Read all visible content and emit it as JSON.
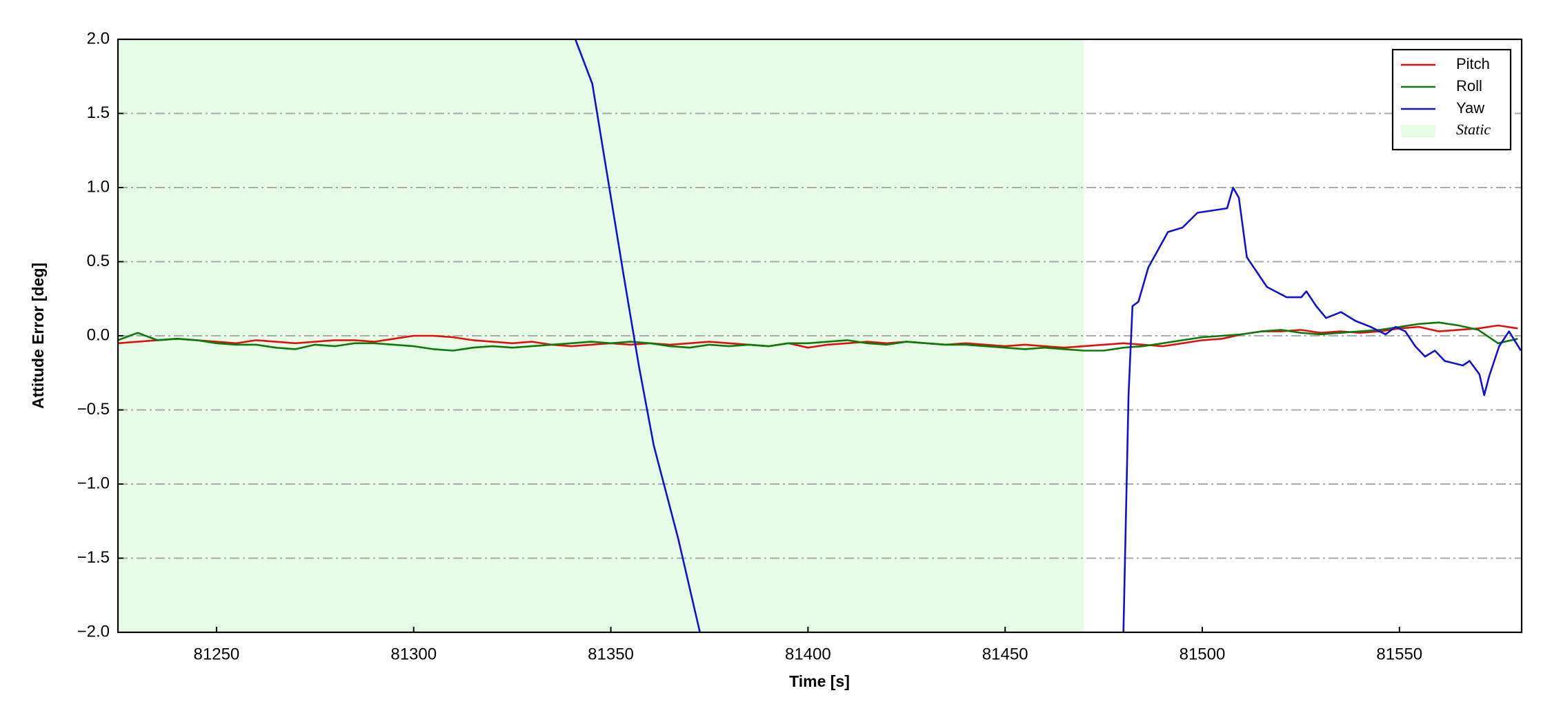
{
  "chart_data": {
    "type": "line",
    "xlabel": "Time [s]",
    "ylabel": "Attitude Error [deg]",
    "xlim": [
      81225,
      81581
    ],
    "ylim": [
      -2.0,
      2.0
    ],
    "xticks": [
      81250,
      81300,
      81350,
      81400,
      81450,
      81500,
      81550
    ],
    "yticks": [
      {
        "value": -2.0,
        "label": "−2.0"
      },
      {
        "value": -1.5,
        "label": "−1.5"
      },
      {
        "value": -1.0,
        "label": "−1.0"
      },
      {
        "value": -0.5,
        "label": "−0.5"
      },
      {
        "value": 0.0,
        "label": "0.0"
      },
      {
        "value": 0.5,
        "label": "0.5"
      },
      {
        "value": 1.0,
        "label": "1.0"
      },
      {
        "value": 1.5,
        "label": "1.5"
      },
      {
        "value": 2.0,
        "label": "2.0"
      }
    ],
    "grid": true,
    "legend": "upper right",
    "static": {
      "name": "Static",
      "range": [
        81225,
        81470
      ],
      "color": "#e6fce6"
    },
    "x": [
      81225,
      81230,
      81235,
      81240,
      81245,
      81250,
      81255,
      81260,
      81265,
      81270,
      81275,
      81280,
      81285,
      81290,
      81295,
      81300,
      81305,
      81310,
      81315,
      81320,
      81325,
      81330,
      81335,
      81340,
      81345,
      81350,
      81355,
      81360,
      81365,
      81370,
      81375,
      81380,
      81385,
      81390,
      81395,
      81400,
      81405,
      81410,
      81415,
      81420,
      81425,
      81430,
      81435,
      81440,
      81445,
      81450,
      81455,
      81460,
      81465,
      81470,
      81475,
      81480,
      81485,
      81490,
      81495,
      81500,
      81505,
      81510,
      81515,
      81520,
      81525,
      81530,
      81535,
      81540,
      81545,
      81550,
      81555,
      81560,
      81565,
      81570,
      81575,
      81580
    ],
    "series": [
      {
        "name": "Pitch",
        "color": "#e01010",
        "values": [
          -0.05,
          -0.04,
          -0.03,
          -0.02,
          -0.03,
          -0.04,
          -0.05,
          -0.03,
          -0.04,
          -0.05,
          -0.04,
          -0.03,
          -0.03,
          -0.04,
          -0.02,
          0.0,
          0.0,
          -0.01,
          -0.03,
          -0.04,
          -0.05,
          -0.04,
          -0.06,
          -0.07,
          -0.06,
          -0.05,
          -0.06,
          -0.05,
          -0.06,
          -0.05,
          -0.04,
          -0.05,
          -0.06,
          -0.07,
          -0.05,
          -0.08,
          -0.06,
          -0.05,
          -0.04,
          -0.05,
          -0.04,
          -0.05,
          -0.06,
          -0.05,
          -0.06,
          -0.07,
          -0.06,
          -0.07,
          -0.08,
          -0.07,
          -0.06,
          -0.05,
          -0.06,
          -0.07,
          -0.05,
          -0.03,
          -0.02,
          0.01,
          0.03,
          0.03,
          0.04,
          0.02,
          0.03,
          0.02,
          0.03,
          0.05,
          0.06,
          0.03,
          0.04,
          0.05,
          0.07,
          0.05
        ]
      },
      {
        "name": "Roll",
        "color": "#0a7a0a",
        "values": [
          -0.03,
          0.02,
          -0.03,
          -0.02,
          -0.03,
          -0.05,
          -0.06,
          -0.06,
          -0.08,
          -0.09,
          -0.06,
          -0.07,
          -0.05,
          -0.05,
          -0.06,
          -0.07,
          -0.09,
          -0.1,
          -0.08,
          -0.07,
          -0.08,
          -0.07,
          -0.06,
          -0.05,
          -0.04,
          -0.05,
          -0.04,
          -0.05,
          -0.07,
          -0.08,
          -0.06,
          -0.07,
          -0.06,
          -0.07,
          -0.05,
          -0.05,
          -0.04,
          -0.03,
          -0.05,
          -0.06,
          -0.04,
          -0.05,
          -0.06,
          -0.06,
          -0.07,
          -0.08,
          -0.09,
          -0.08,
          -0.09,
          -0.1,
          -0.1,
          -0.08,
          -0.07,
          -0.05,
          -0.03,
          -0.01,
          0.0,
          0.01,
          0.03,
          0.04,
          0.02,
          0.01,
          0.02,
          0.03,
          0.04,
          0.06,
          0.08,
          0.09,
          0.07,
          0.04,
          -0.05,
          -0.02
        ]
      },
      {
        "name": "Yaw",
        "color": "#1010d8",
        "x": [
          81341.0,
          81345.3,
          81349.6,
          81353.3,
          81357.1,
          81360.9,
          81367.1,
          81372.6,
          81426,
          81480.0,
          81481.3,
          81482.3,
          81483.8,
          81486.3,
          81491.3,
          81495.0,
          81498.8,
          81501.3,
          81506.3,
          81507.8,
          81509.3,
          81511.3,
          81516.4,
          81521.4,
          81525.1,
          81526.4,
          81528.9,
          81531.4,
          81535.2,
          81538.9,
          81542.7,
          81546.5,
          81549.0,
          81551.5,
          81554.0,
          81556.5,
          81559.0,
          81561.5,
          81566.1,
          81567.8,
          81570.3,
          81571.5,
          81572.8,
          81575.3,
          81577.8,
          81580.8
        ],
        "values": [
          2.0,
          1.7,
          1.0,
          0.4,
          -0.2,
          -0.74,
          -1.37,
          -2.0,
          null,
          -2.0,
          -0.4,
          0.2,
          0.23,
          0.46,
          0.7,
          0.73,
          0.83,
          0.84,
          0.86,
          1.0,
          0.93,
          0.53,
          0.33,
          0.26,
          0.26,
          0.3,
          0.2,
          0.12,
          0.16,
          0.1,
          0.06,
          0.01,
          0.06,
          0.03,
          -0.07,
          -0.14,
          -0.1,
          -0.17,
          -0.2,
          -0.17,
          -0.26,
          -0.4,
          -0.27,
          -0.07,
          0.03,
          -0.1
        ]
      }
    ]
  }
}
